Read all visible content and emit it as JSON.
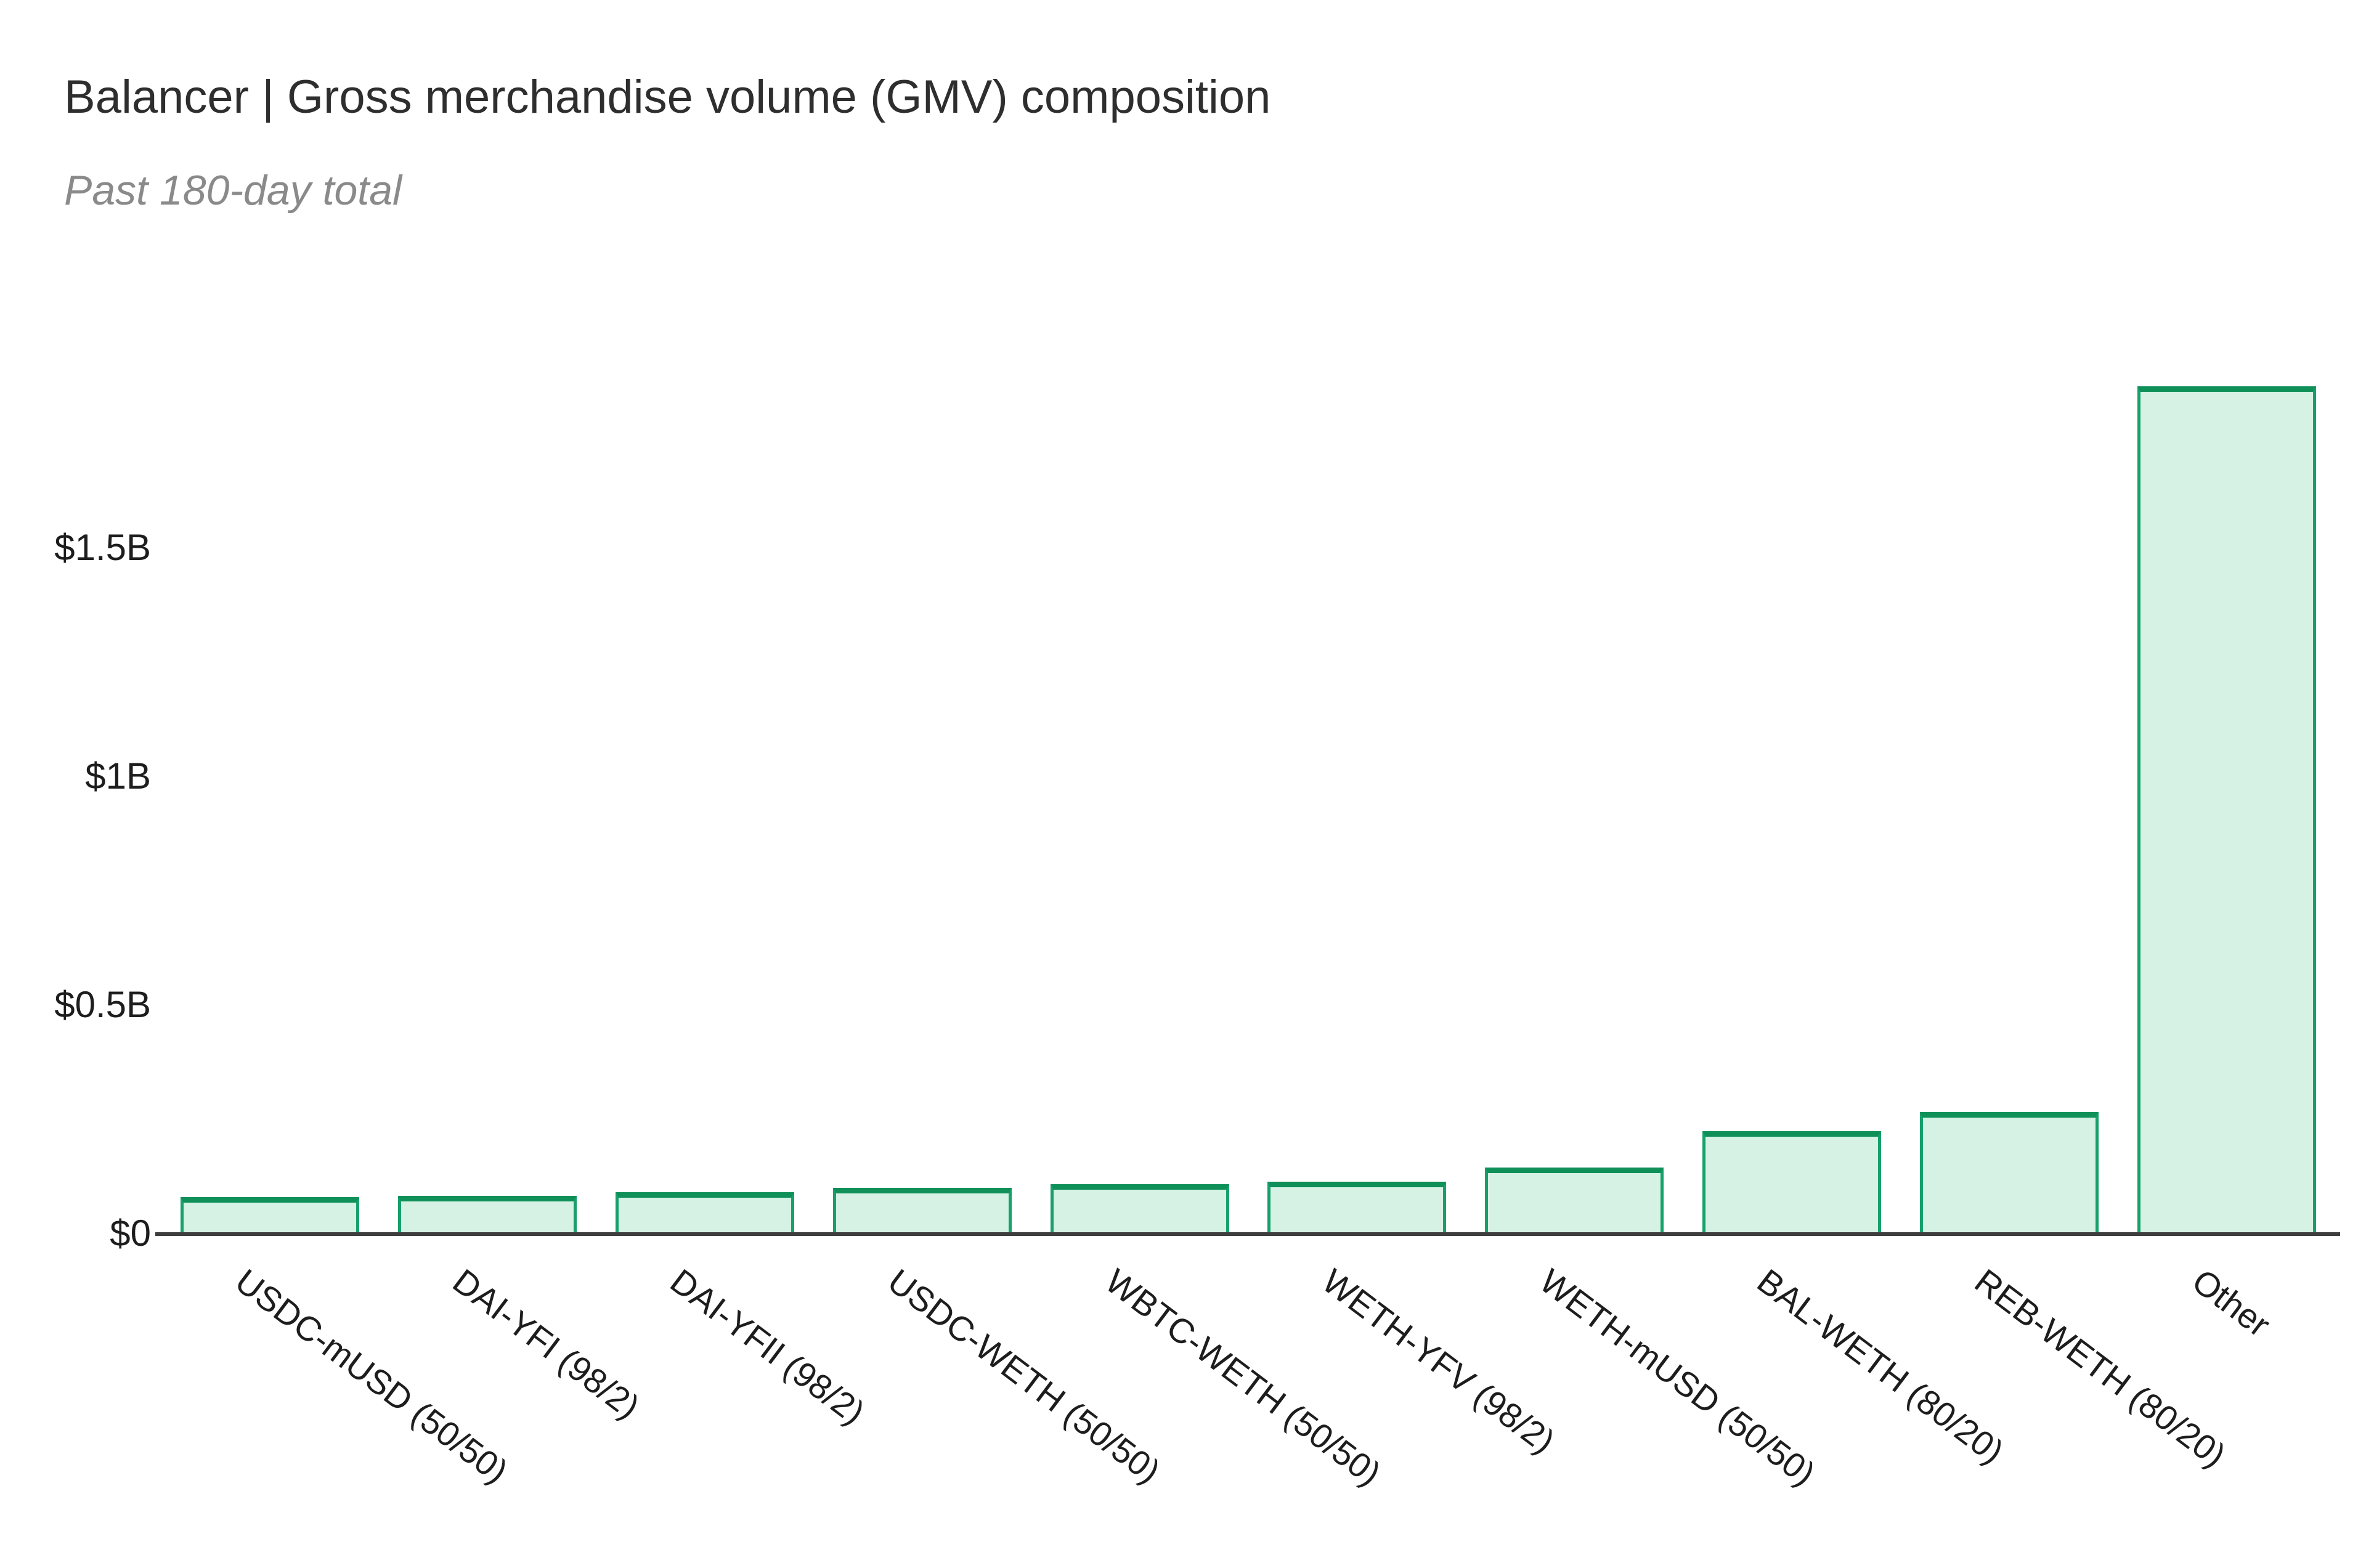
{
  "header": {
    "title": "Balancer | Gross merchandise volume (GMV) composition",
    "subtitle": "Past 180-day total"
  },
  "chart_data": {
    "type": "bar",
    "title": "Balancer | Gross merchandise volume (GMV) composition",
    "subtitle": "Past 180-day total",
    "categories": [
      "USDC-mUSD (50/50)",
      "DAI-YFI (98/2)",
      "DAI-YFII (98/2)",
      "USDC-WETH (50/50)",
      "WBTC-WETH (50/50)",
      "WETH-YFV (98/2)",
      "WETH-mUSD (50/50)",
      "BAL-WETH (80/20)",
      "REB-WETH (80/20)",
      "Other"
    ],
    "values": [
      0.08,
      0.082,
      0.09,
      0.1,
      0.108,
      0.113,
      0.144,
      0.224,
      0.266,
      1.853
    ],
    "unit": "USD billions",
    "xlabel": "",
    "ylabel": "",
    "y_ticks": [
      {
        "label": "$1.5B",
        "value": 1.5
      },
      {
        "label": "$1B",
        "value": 1.0
      },
      {
        "label": "$0.5B",
        "value": 0.5
      },
      {
        "label": "$0",
        "value": 0.0
      }
    ],
    "ylim": [
      0,
      1.9
    ],
    "grid": false,
    "legend_position": "none",
    "colors": {
      "bar_fill": "#d5f2e4",
      "bar_border": "#18a06b",
      "bar_border_top": "#0f9059",
      "axis_line": "#3e3e3e",
      "title_text": "#2e2e2e",
      "subtitle_text": "#8a8a8a",
      "tick_text": "#1d1d1d",
      "background": "#ffffff"
    }
  }
}
